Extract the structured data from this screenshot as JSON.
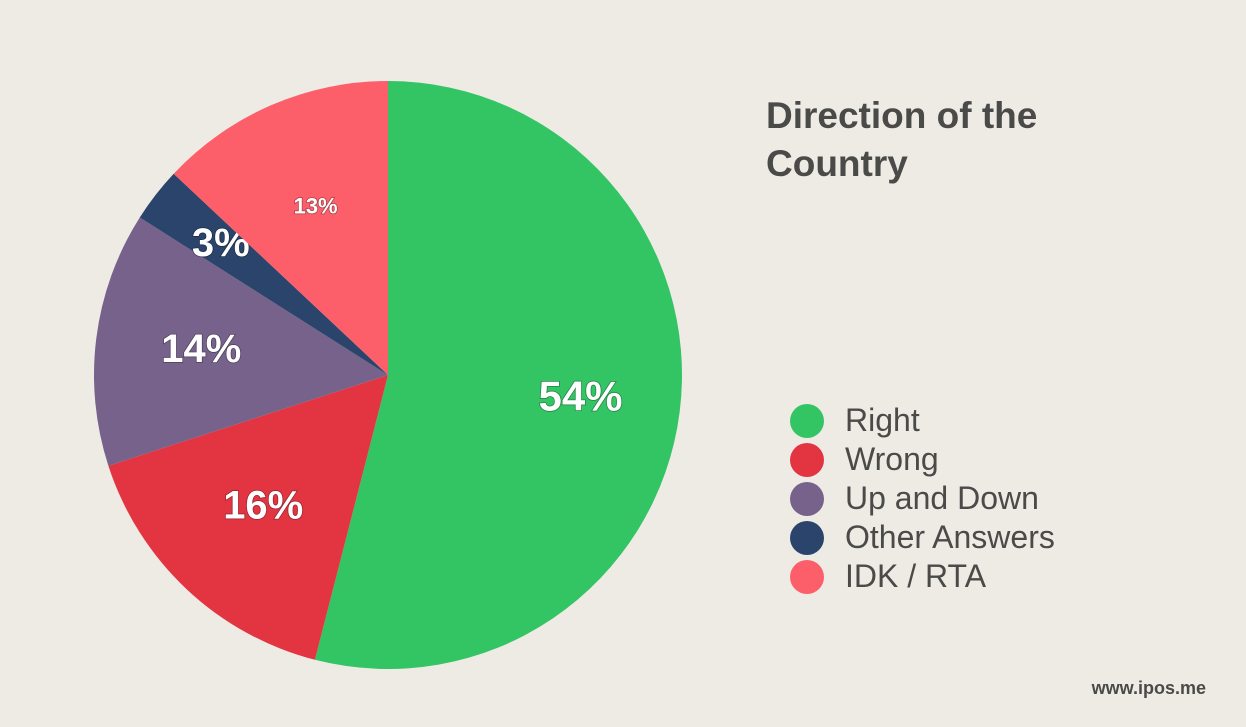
{
  "chart_data": {
    "type": "pie",
    "title": "Direction of the Country",
    "slices": [
      {
        "name": "Right",
        "value": 54,
        "label": "54%",
        "color": "#33c464"
      },
      {
        "name": "Wrong",
        "value": 16,
        "label": "16%",
        "color": "#e33442"
      },
      {
        "name": "Up and Down",
        "value": 14,
        "label": "14%",
        "color": "#76628a"
      },
      {
        "name": "Other Answers",
        "value": 3,
        "label": "3%",
        "color": "#2a446b"
      },
      {
        "name": "IDK / RTA",
        "value": 13,
        "label": "13%",
        "color": "#fd5f6a"
      }
    ],
    "legend_position": "right"
  },
  "footer": {
    "source": "www.ipos.me"
  }
}
